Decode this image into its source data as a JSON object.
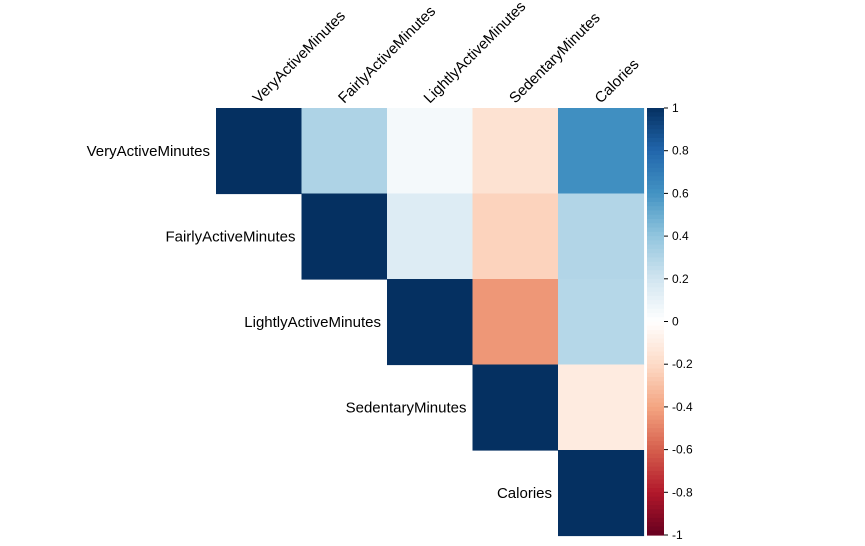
{
  "chart_data": {
    "type": "heatmap",
    "variant": "upper-triangle correlation matrix",
    "variables": [
      "VeryActiveMinutes",
      "FairlyActiveMinutes",
      "LightlyActiveMinutes",
      "SedentaryMinutes",
      "Calories"
    ],
    "matrix": [
      [
        1.0,
        0.31,
        0.05,
        -0.16,
        0.62
      ],
      [
        0.31,
        1.0,
        0.15,
        -0.23,
        0.3
      ],
      [
        0.05,
        0.15,
        1.0,
        -0.44,
        0.29
      ],
      [
        -0.16,
        -0.23,
        -0.44,
        1.0,
        -0.11
      ],
      [
        0.62,
        0.3,
        0.29,
        -0.11,
        1.0
      ]
    ],
    "colorbar": {
      "range": [
        -1,
        1
      ],
      "ticks": [
        "1",
        "0.8",
        "0.6",
        "0.4",
        "0.2",
        "0",
        "-0.2",
        "-0.4",
        "-0.6",
        "-0.8",
        "-1"
      ],
      "tick_values": [
        1,
        0.8,
        0.6,
        0.4,
        0.2,
        0,
        -0.2,
        -0.4,
        -0.6,
        -0.8,
        -1
      ]
    },
    "colors": {
      "negative_end": "#67001F",
      "neutral": "#FFFFFF",
      "positive_end": "#053061"
    },
    "title": "",
    "grid": false
  }
}
